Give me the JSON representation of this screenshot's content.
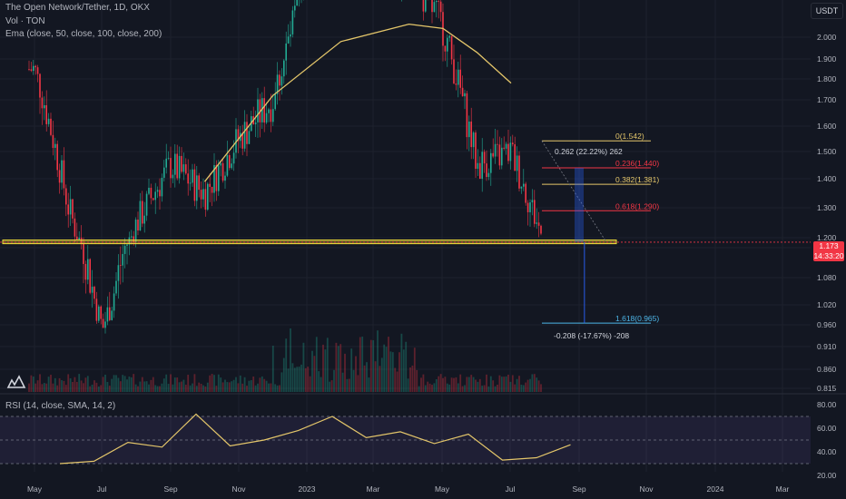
{
  "header": {
    "title": "The Open Network/Tether, 1D, OKX",
    "volume_label": "Vol · TON",
    "ema_label": "Ema (close, 50, close, 100, close, 200)",
    "rsi_label": "RSI (14, close, SMA, 14, 2)",
    "unit": "USDT"
  },
  "last_price": {
    "value": "1.173",
    "countdown": "14:33:20",
    "color": "#f23645"
  },
  "colors": {
    "up": "#22ab94",
    "down": "#f23645",
    "ema": "#e4c66a",
    "rsi": "#e4c66a",
    "rsi_band": "#7e57c2",
    "zone": "#f5e13a",
    "fib_red": "#f23645",
    "fib_yellow": "#e4c66a",
    "fib_blue": "#4db6e8"
  },
  "chart_data": [
    {
      "type": "line",
      "name": "price",
      "ylim": [
        0.815,
        2.1
      ],
      "y_ticks": [
        "2.000",
        "1.900",
        "1.800",
        "1.700",
        "1.600",
        "1.500",
        "1.400",
        "1.300",
        "1.200",
        "1.140",
        "1.080",
        "1.020",
        "0.960",
        "0.910",
        "0.860",
        "0.815"
      ],
      "x_ticks": [
        "May",
        "Jul",
        "Sep",
        "Nov",
        "2023",
        "Mar",
        "May",
        "Jul",
        "Sep",
        "Nov",
        "2024",
        "Mar"
      ],
      "x": [
        "2022-05",
        "2022-06",
        "2022-07",
        "2022-08",
        "2022-09",
        "2022-10",
        "2022-11",
        "2022-12",
        "2023-01",
        "2023-02",
        "2023-03",
        "2023-04",
        "2023-05",
        "2023-06",
        "2023-07",
        "2023-08"
      ],
      "close": [
        1.85,
        1.3,
        0.95,
        1.25,
        1.45,
        1.35,
        1.55,
        1.7,
        2.3,
        2.5,
        2.4,
        2.3,
        2.05,
        1.45,
        1.5,
        1.173
      ],
      "ema": {
        "x": [
          "2022-10",
          "2022-12",
          "2023-02",
          "2023-04",
          "2023-05",
          "2023-06",
          "2023-07"
        ],
        "y": [
          1.39,
          1.72,
          1.98,
          2.06,
          2.04,
          1.93,
          1.78
        ]
      },
      "support_zone": [
        1.164,
        1.186
      ],
      "fib_levels": [
        {
          "label": "0(1.542)",
          "value": 1.542,
          "color": "yellow"
        },
        {
          "label": "0.236(1.440)",
          "value": 1.44,
          "color": "red"
        },
        {
          "label": "0.382(1.381)",
          "value": 1.381,
          "color": "yellow"
        },
        {
          "label": "0.618(1.290)",
          "value": 1.29,
          "color": "red"
        },
        {
          "label": "1.618(0.965)",
          "value": 0.965,
          "color": "blue"
        }
      ],
      "measure_up": "0.262 (22.22%) 262",
      "measure_down": "-0.208 (-17.67%) -208"
    },
    {
      "type": "line",
      "name": "RSI",
      "ylim": [
        20,
        85
      ],
      "y_ticks": [
        "80.00",
        "60.00",
        "40.00",
        "20.00"
      ],
      "band": [
        30,
        70
      ],
      "mid": 50,
      "x": [
        "2022-05",
        "2022-06",
        "2022-07",
        "2022-08",
        "2022-09",
        "2022-10",
        "2022-11",
        "2022-12",
        "2023-01",
        "2023-02",
        "2023-03",
        "2023-04",
        "2023-05",
        "2023-06",
        "2023-07",
        "2023-08"
      ],
      "values": [
        30,
        32,
        48,
        44,
        72,
        45,
        50,
        58,
        70,
        52,
        57,
        47,
        55,
        33,
        35,
        46
      ]
    }
  ]
}
